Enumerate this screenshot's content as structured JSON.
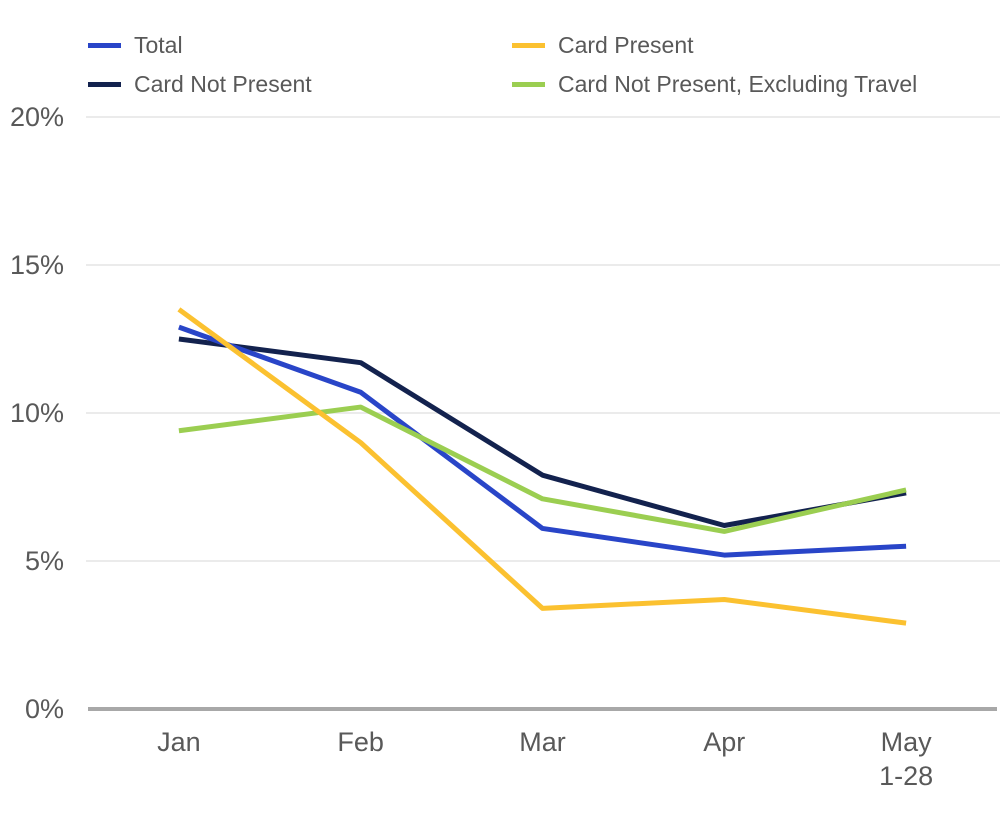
{
  "chart_data": {
    "type": "line",
    "title": "",
    "categories": [
      "Jan",
      "Feb",
      "Mar",
      "Apr",
      "May 1-28"
    ],
    "x_tick_labels": [
      [
        "Jan"
      ],
      [
        "Feb"
      ],
      [
        "Mar"
      ],
      [
        "Apr"
      ],
      [
        "May",
        "1-28"
      ]
    ],
    "series": [
      {
        "name": "Total",
        "color": "#2945c8",
        "values": [
          12.9,
          10.7,
          6.1,
          5.2,
          5.5
        ]
      },
      {
        "name": "Card Present",
        "color": "#fbc130",
        "values": [
          13.5,
          9.0,
          3.4,
          3.7,
          2.9
        ]
      },
      {
        "name": "Card Not Present",
        "color": "#13224e",
        "values": [
          12.5,
          11.7,
          7.9,
          6.2,
          7.3
        ]
      },
      {
        "name": "Card Not Present, Excluding Travel",
        "color": "#9bce51",
        "values": [
          9.4,
          10.2,
          7.1,
          6.0,
          7.4
        ]
      }
    ],
    "ylim": [
      0,
      20
    ],
    "y_ticks": [
      0,
      5,
      10,
      15,
      20
    ],
    "y_tick_labels": [
      "0%",
      "5%",
      "10%",
      "15%",
      "20%"
    ],
    "xlabel": "",
    "ylabel": "",
    "grid": true,
    "legend_position": "top-two-columns"
  },
  "colors": {
    "background": "#ffffff",
    "label_text": "#595959",
    "gridline": "#ebebeb",
    "axis_line": "#a8a8a8"
  }
}
